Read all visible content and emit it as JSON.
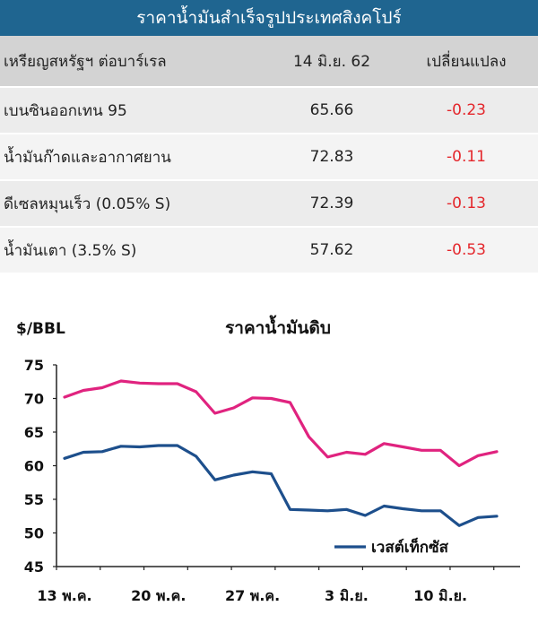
{
  "banner": {
    "title": "ราคาน้ำมันสำเร็จรูปประเทศสิงคโปร์"
  },
  "table": {
    "headers": [
      "เหรียญสหรัฐฯ ต่อบาร์เรล",
      "14 มิ.ย. 62",
      "เปลี่ยนแปลง"
    ],
    "rows": [
      {
        "name": "เบนซินออกเทน 95",
        "price": "65.66",
        "change": "-0.23"
      },
      {
        "name": "น้ำมันก๊าดและอากาศยาน",
        "price": "72.83",
        "change": "-0.11"
      },
      {
        "name": "ดีเซลหมุนเร็ว (0.05% S)",
        "price": "72.39",
        "change": "-0.13"
      },
      {
        "name": "น้ำมันเตา (3.5% S)",
        "price": "57.62",
        "change": "-0.53"
      }
    ]
  },
  "colors": {
    "banner": "#1f6590",
    "negative": "#e4262b",
    "brent": "#e0237f",
    "wti": "#1d4f8c",
    "header_bg": "#d3d3d3"
  },
  "chart_data": {
    "type": "line",
    "title": "ราคาน้ำมันดิบ",
    "ylabel": "$/BBL",
    "xlabel": "",
    "ylim": [
      45,
      75
    ],
    "yticks": [
      45,
      50,
      55,
      60,
      65,
      70,
      75
    ],
    "xticks": [
      "13 พ.ค.",
      "20 พ.ค.",
      "27 พ.ค.",
      "3 มิ.ย.",
      "10 มิ.ย."
    ],
    "x": [
      "13 พ.ค.",
      "14 พ.ค.",
      "15 พ.ค.",
      "16 พ.ค.",
      "17 พ.ค.",
      "20 พ.ค.",
      "21 พ.ค.",
      "22 พ.ค.",
      "23 พ.ค.",
      "24 พ.ค.",
      "27 พ.ค.",
      "28 พ.ค.",
      "29 พ.ค.",
      "30 พ.ค.",
      "31 พ.ค.",
      "3 มิ.ย.",
      "4 มิ.ย.",
      "5 มิ.ย.",
      "6 มิ.ย.",
      "7 มิ.ย.",
      "10 มิ.ย.",
      "11 มิ.ย.",
      "12 มิ.ย.",
      "13 มิ.ย.",
      "14 มิ.ย."
    ],
    "series": [
      {
        "name": "",
        "color": "#e0237f",
        "values": [
          70.2,
          71.2,
          71.6,
          72.6,
          72.3,
          72.2,
          72.2,
          71.0,
          67.8,
          68.6,
          70.1,
          70.0,
          69.4,
          64.3,
          61.3,
          62.0,
          61.7,
          63.3,
          62.8,
          62.3,
          62.3,
          60.0,
          61.5,
          62.1,
          null
        ]
      },
      {
        "name": "เวสต์เท็กซัส",
        "color": "#1d4f8c",
        "values": [
          61.1,
          62.0,
          62.1,
          62.9,
          62.8,
          63.0,
          63.0,
          61.4,
          57.9,
          58.6,
          59.1,
          58.8,
          53.5,
          53.4,
          53.3,
          53.5,
          52.6,
          54.0,
          53.6,
          53.3,
          53.3,
          51.1,
          52.3,
          52.5,
          null
        ]
      }
    ],
    "grid": false,
    "legend": "bottom-right"
  }
}
